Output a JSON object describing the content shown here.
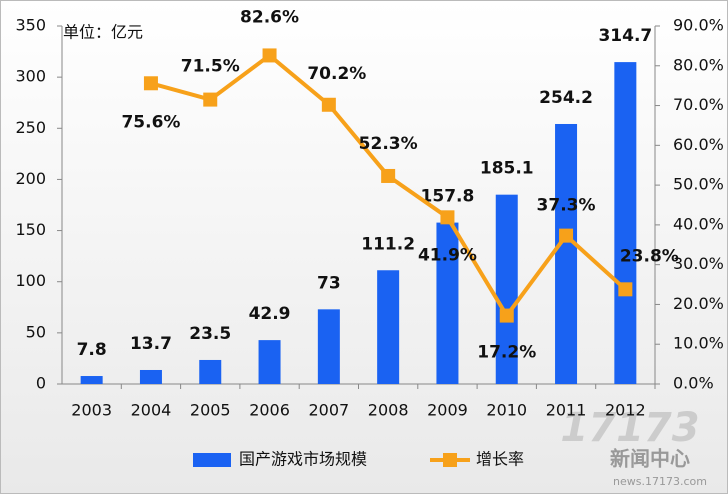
{
  "chart_data": {
    "type": "combo",
    "annotation": "单位：亿元",
    "categories": [
      "2003",
      "2004",
      "2005",
      "2006",
      "2007",
      "2008",
      "2009",
      "2010",
      "2011",
      "2012"
    ],
    "series": [
      {
        "name": "国产游戏市场规模",
        "type": "bar",
        "color": "#1a62f2",
        "values": [
          7.8,
          13.7,
          23.5,
          42.9,
          73,
          111.2,
          157.8,
          185.1,
          254.2,
          314.7
        ]
      },
      {
        "name": "增长率",
        "type": "line",
        "axis": "y2",
        "color": "#f7a11a",
        "values": [
          null,
          75.6,
          71.5,
          82.6,
          70.2,
          52.3,
          41.9,
          17.2,
          37.3,
          23.8
        ],
        "value_labels": [
          null,
          "75.6%",
          "71.5%",
          "82.6%",
          "70.2%",
          "52.3%",
          "41.9%",
          "17.2%",
          "37.3%",
          "23.8%"
        ]
      }
    ],
    "ylim": [
      0,
      350
    ],
    "yticks": [
      0,
      50,
      100,
      150,
      200,
      250,
      300,
      350
    ],
    "y2lim": [
      0,
      90
    ],
    "y2ticks": [
      {
        "value": 0,
        "label": "0.0%"
      },
      {
        "value": 10,
        "label": "10.0%"
      },
      {
        "value": 20,
        "label": "20.0%"
      },
      {
        "value": 30,
        "label": "30.0%"
      },
      {
        "value": 40,
        "label": "40.0%"
      },
      {
        "value": 50,
        "label": "50.0%"
      },
      {
        "value": 60,
        "label": "60.0%"
      },
      {
        "value": 70,
        "label": "70.0%"
      },
      {
        "value": 80,
        "label": "80.0%"
      },
      {
        "value": 90,
        "label": "90.0%"
      }
    ],
    "legend": "bottom",
    "watermark": [
      "17173",
      "新闻中心",
      "news.17173.com"
    ]
  }
}
